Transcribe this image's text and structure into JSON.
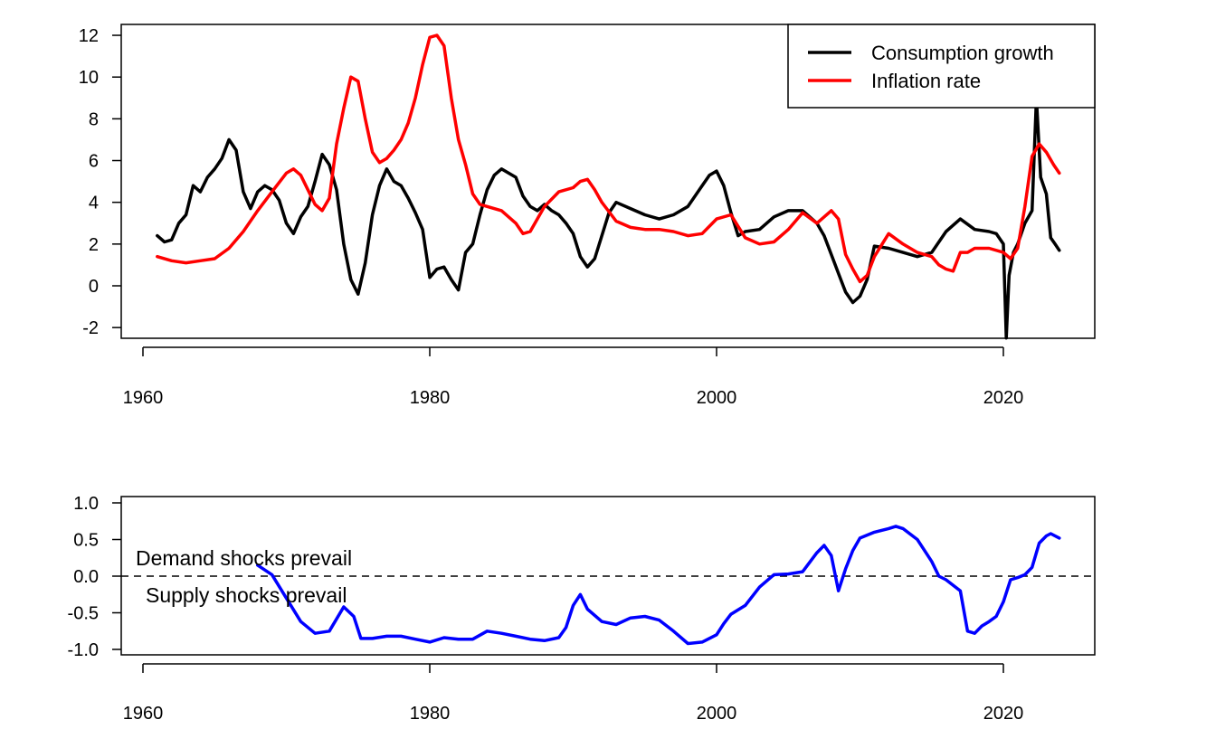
{
  "chart_data": [
    {
      "type": "line",
      "title": "",
      "xlabel": "",
      "ylabel": "",
      "xlim": [
        1960,
        2024
      ],
      "ylim": [
        -2.5,
        12.5
      ],
      "x_ticks": [
        "1960",
        "1980",
        "2000",
        "2020"
      ],
      "y_ticks": [
        "-2",
        "0",
        "2",
        "4",
        "6",
        "8",
        "10",
        "12"
      ],
      "legend": {
        "placement": "top-right"
      },
      "series": [
        {
          "name": "Consumption growth",
          "color": "#000000",
          "x": [
            1961.0,
            1961.5,
            1962.0,
            1962.5,
            1963.0,
            1963.5,
            1964.0,
            1964.5,
            1965.0,
            1965.5,
            1966.0,
            1966.5,
            1967.0,
            1967.5,
            1968.0,
            1968.5,
            1969.0,
            1969.5,
            1970.0,
            1970.5,
            1971.0,
            1971.5,
            1972.0,
            1972.5,
            1973.0,
            1973.5,
            1974.0,
            1974.5,
            1975.0,
            1975.5,
            1976.0,
            1976.5,
            1977.0,
            1977.5,
            1978.0,
            1978.5,
            1979.0,
            1979.5,
            1980.0,
            1980.5,
            1981.0,
            1981.5,
            1982.0,
            1982.5,
            1983.0,
            1983.5,
            1984.0,
            1984.5,
            1985.0,
            1985.5,
            1986.0,
            1986.5,
            1987.0,
            1987.5,
            1988.0,
            1988.5,
            1989.0,
            1989.5,
            1990.0,
            1990.5,
            1991.0,
            1991.5,
            1992.0,
            1992.5,
            1993.0,
            1994.0,
            1995.0,
            1996.0,
            1997.0,
            1998.0,
            1999.0,
            1999.5,
            2000.0,
            2000.5,
            2001.0,
            2001.5,
            2002.0,
            2003.0,
            2004.0,
            2005.0,
            2006.0,
            2007.0,
            2007.5,
            2008.0,
            2008.5,
            2009.0,
            2009.5,
            2010.0,
            2010.5,
            2011.0,
            2012.0,
            2013.0,
            2014.0,
            2015.0,
            2016.0,
            2017.0,
            2018.0,
            2019.0,
            2019.5,
            2020.0,
            2020.2,
            2020.4,
            2020.7,
            2021.0,
            2021.5,
            2022.0,
            2022.3,
            2022.6,
            2023.0,
            2023.3,
            2023.6,
            2023.9
          ],
          "y": [
            2.4,
            2.1,
            2.2,
            3.0,
            3.4,
            4.8,
            4.5,
            5.2,
            5.6,
            6.1,
            7.0,
            6.5,
            4.5,
            3.7,
            4.5,
            4.8,
            4.6,
            4.1,
            3.0,
            2.5,
            3.3,
            3.8,
            5.0,
            6.3,
            5.8,
            4.6,
            2.0,
            0.3,
            -0.4,
            1.1,
            3.4,
            4.8,
            5.6,
            5.0,
            4.8,
            4.2,
            3.5,
            2.7,
            0.4,
            0.8,
            0.9,
            0.3,
            -0.2,
            1.6,
            2.0,
            3.4,
            4.6,
            5.3,
            5.6,
            5.4,
            5.2,
            4.3,
            3.8,
            3.6,
            3.9,
            3.6,
            3.4,
            3.0,
            2.5,
            1.4,
            0.9,
            1.3,
            2.4,
            3.5,
            4.0,
            3.7,
            3.4,
            3.2,
            3.4,
            3.8,
            4.8,
            5.3,
            5.5,
            4.8,
            3.5,
            2.4,
            2.6,
            2.7,
            3.3,
            3.6,
            3.6,
            3.0,
            2.4,
            1.5,
            0.6,
            -0.3,
            -0.8,
            -0.5,
            0.3,
            1.9,
            1.8,
            1.6,
            1.4,
            1.6,
            2.6,
            3.2,
            2.7,
            2.6,
            2.5,
            2.0,
            -2.5,
            0.5,
            1.6,
            2.0,
            3.0,
            3.6,
            9.0,
            5.2,
            4.4,
            2.3,
            2.0,
            1.7
          ]
        },
        {
          "name": "Inflation rate",
          "color": "#ff0000",
          "x": [
            1961.0,
            1962.0,
            1963.0,
            1964.0,
            1965.0,
            1966.0,
            1967.0,
            1968.0,
            1969.0,
            1970.0,
            1970.5,
            1971.0,
            1971.5,
            1972.0,
            1972.5,
            1973.0,
            1973.5,
            1974.0,
            1974.5,
            1975.0,
            1975.5,
            1976.0,
            1976.5,
            1977.0,
            1977.5,
            1978.0,
            1978.5,
            1979.0,
            1979.5,
            1980.0,
            1980.5,
            1981.0,
            1981.5,
            1982.0,
            1982.5,
            1983.0,
            1983.5,
            1984.0,
            1985.0,
            1986.0,
            1986.5,
            1987.0,
            1988.0,
            1989.0,
            1990.0,
            1990.5,
            1991.0,
            1991.5,
            1992.0,
            1993.0,
            1994.0,
            1995.0,
            1996.0,
            1997.0,
            1998.0,
            1999.0,
            2000.0,
            2001.0,
            2002.0,
            2003.0,
            2004.0,
            2005.0,
            2006.0,
            2007.0,
            2008.0,
            2008.5,
            2009.0,
            2009.5,
            2010.0,
            2010.5,
            2011.0,
            2012.0,
            2013.0,
            2014.0,
            2015.0,
            2015.5,
            2016.0,
            2016.5,
            2017.0,
            2017.5,
            2018.0,
            2019.0,
            2020.0,
            2020.5,
            2021.0,
            2021.5,
            2022.0,
            2022.5,
            2023.0,
            2023.5,
            2023.9
          ],
          "y": [
            1.4,
            1.2,
            1.1,
            1.2,
            1.3,
            1.8,
            2.6,
            3.6,
            4.5,
            5.4,
            5.6,
            5.3,
            4.6,
            3.9,
            3.6,
            4.2,
            6.8,
            8.5,
            10.0,
            9.8,
            8.0,
            6.4,
            5.9,
            6.1,
            6.5,
            7.0,
            7.8,
            9.0,
            10.6,
            11.9,
            12.0,
            11.5,
            9.0,
            7.0,
            5.8,
            4.4,
            3.9,
            3.8,
            3.6,
            3.0,
            2.5,
            2.6,
            3.8,
            4.5,
            4.7,
            5.0,
            5.1,
            4.6,
            4.0,
            3.1,
            2.8,
            2.7,
            2.7,
            2.6,
            2.4,
            2.5,
            3.2,
            3.4,
            2.3,
            2.0,
            2.1,
            2.7,
            3.5,
            3.0,
            3.6,
            3.2,
            1.5,
            0.8,
            0.2,
            0.5,
            1.4,
            2.5,
            2.0,
            1.6,
            1.4,
            1.0,
            0.8,
            0.7,
            1.6,
            1.6,
            1.8,
            1.8,
            1.6,
            1.3,
            1.8,
            3.8,
            6.2,
            6.8,
            6.4,
            5.8,
            5.4
          ]
        }
      ]
    },
    {
      "type": "line",
      "title": "",
      "xlabel": "",
      "ylabel": "",
      "xlim": [
        1960,
        2024
      ],
      "ylim": [
        -1.0,
        1.0
      ],
      "x_ticks": [
        "1960",
        "1980",
        "2000",
        "2020"
      ],
      "y_ticks": [
        "-1.0",
        "-0.5",
        "0.0",
        "0.5",
        "1.0"
      ],
      "reference_line": {
        "y": 0.0,
        "style": "dashed"
      },
      "annotations": [
        "Demand shocks prevail",
        "Supply shocks prevail"
      ],
      "series": [
        {
          "color": "#0000ff",
          "x": [
            1968.0,
            1969.0,
            1970.0,
            1971.0,
            1972.0,
            1973.0,
            1974.0,
            1974.7,
            1975.2,
            1976.0,
            1977.0,
            1978.0,
            1979.0,
            1980.0,
            1981.0,
            1982.0,
            1983.0,
            1984.0,
            1985.0,
            1986.0,
            1987.0,
            1988.0,
            1989.0,
            1989.5,
            1990.0,
            1990.5,
            1991.0,
            1992.0,
            1993.0,
            1994.0,
            1995.0,
            1996.0,
            1997.0,
            1998.0,
            1999.0,
            2000.0,
            2000.5,
            2001.0,
            2002.0,
            2003.0,
            2004.0,
            2005.0,
            2006.0,
            2007.0,
            2007.5,
            2008.0,
            2008.5,
            2009.0,
            2009.5,
            2010.0,
            2011.0,
            2012.0,
            2012.5,
            2013.0,
            2014.0,
            2015.0,
            2015.5,
            2016.0,
            2017.0,
            2017.5,
            2018.0,
            2018.5,
            2019.0,
            2019.5,
            2020.0,
            2020.5,
            2021.0,
            2021.5,
            2022.0,
            2022.5,
            2023.0,
            2023.3,
            2023.9
          ],
          "y": [
            0.15,
            0.02,
            -0.3,
            -0.62,
            -0.78,
            -0.75,
            -0.42,
            -0.55,
            -0.85,
            -0.85,
            -0.82,
            -0.82,
            -0.86,
            -0.9,
            -0.84,
            -0.86,
            -0.86,
            -0.75,
            -0.78,
            -0.82,
            -0.86,
            -0.88,
            -0.84,
            -0.7,
            -0.4,
            -0.25,
            -0.45,
            -0.62,
            -0.66,
            -0.57,
            -0.55,
            -0.6,
            -0.75,
            -0.92,
            -0.9,
            -0.8,
            -0.65,
            -0.52,
            -0.4,
            -0.15,
            0.02,
            0.03,
            0.06,
            0.32,
            0.42,
            0.28,
            -0.2,
            0.1,
            0.35,
            0.52,
            0.6,
            0.65,
            0.68,
            0.65,
            0.5,
            0.2,
            0.0,
            -0.05,
            -0.2,
            -0.75,
            -0.78,
            -0.68,
            -0.62,
            -0.55,
            -0.35,
            -0.05,
            -0.02,
            0.02,
            0.12,
            0.45,
            0.55,
            0.58,
            0.52
          ]
        }
      ]
    }
  ]
}
